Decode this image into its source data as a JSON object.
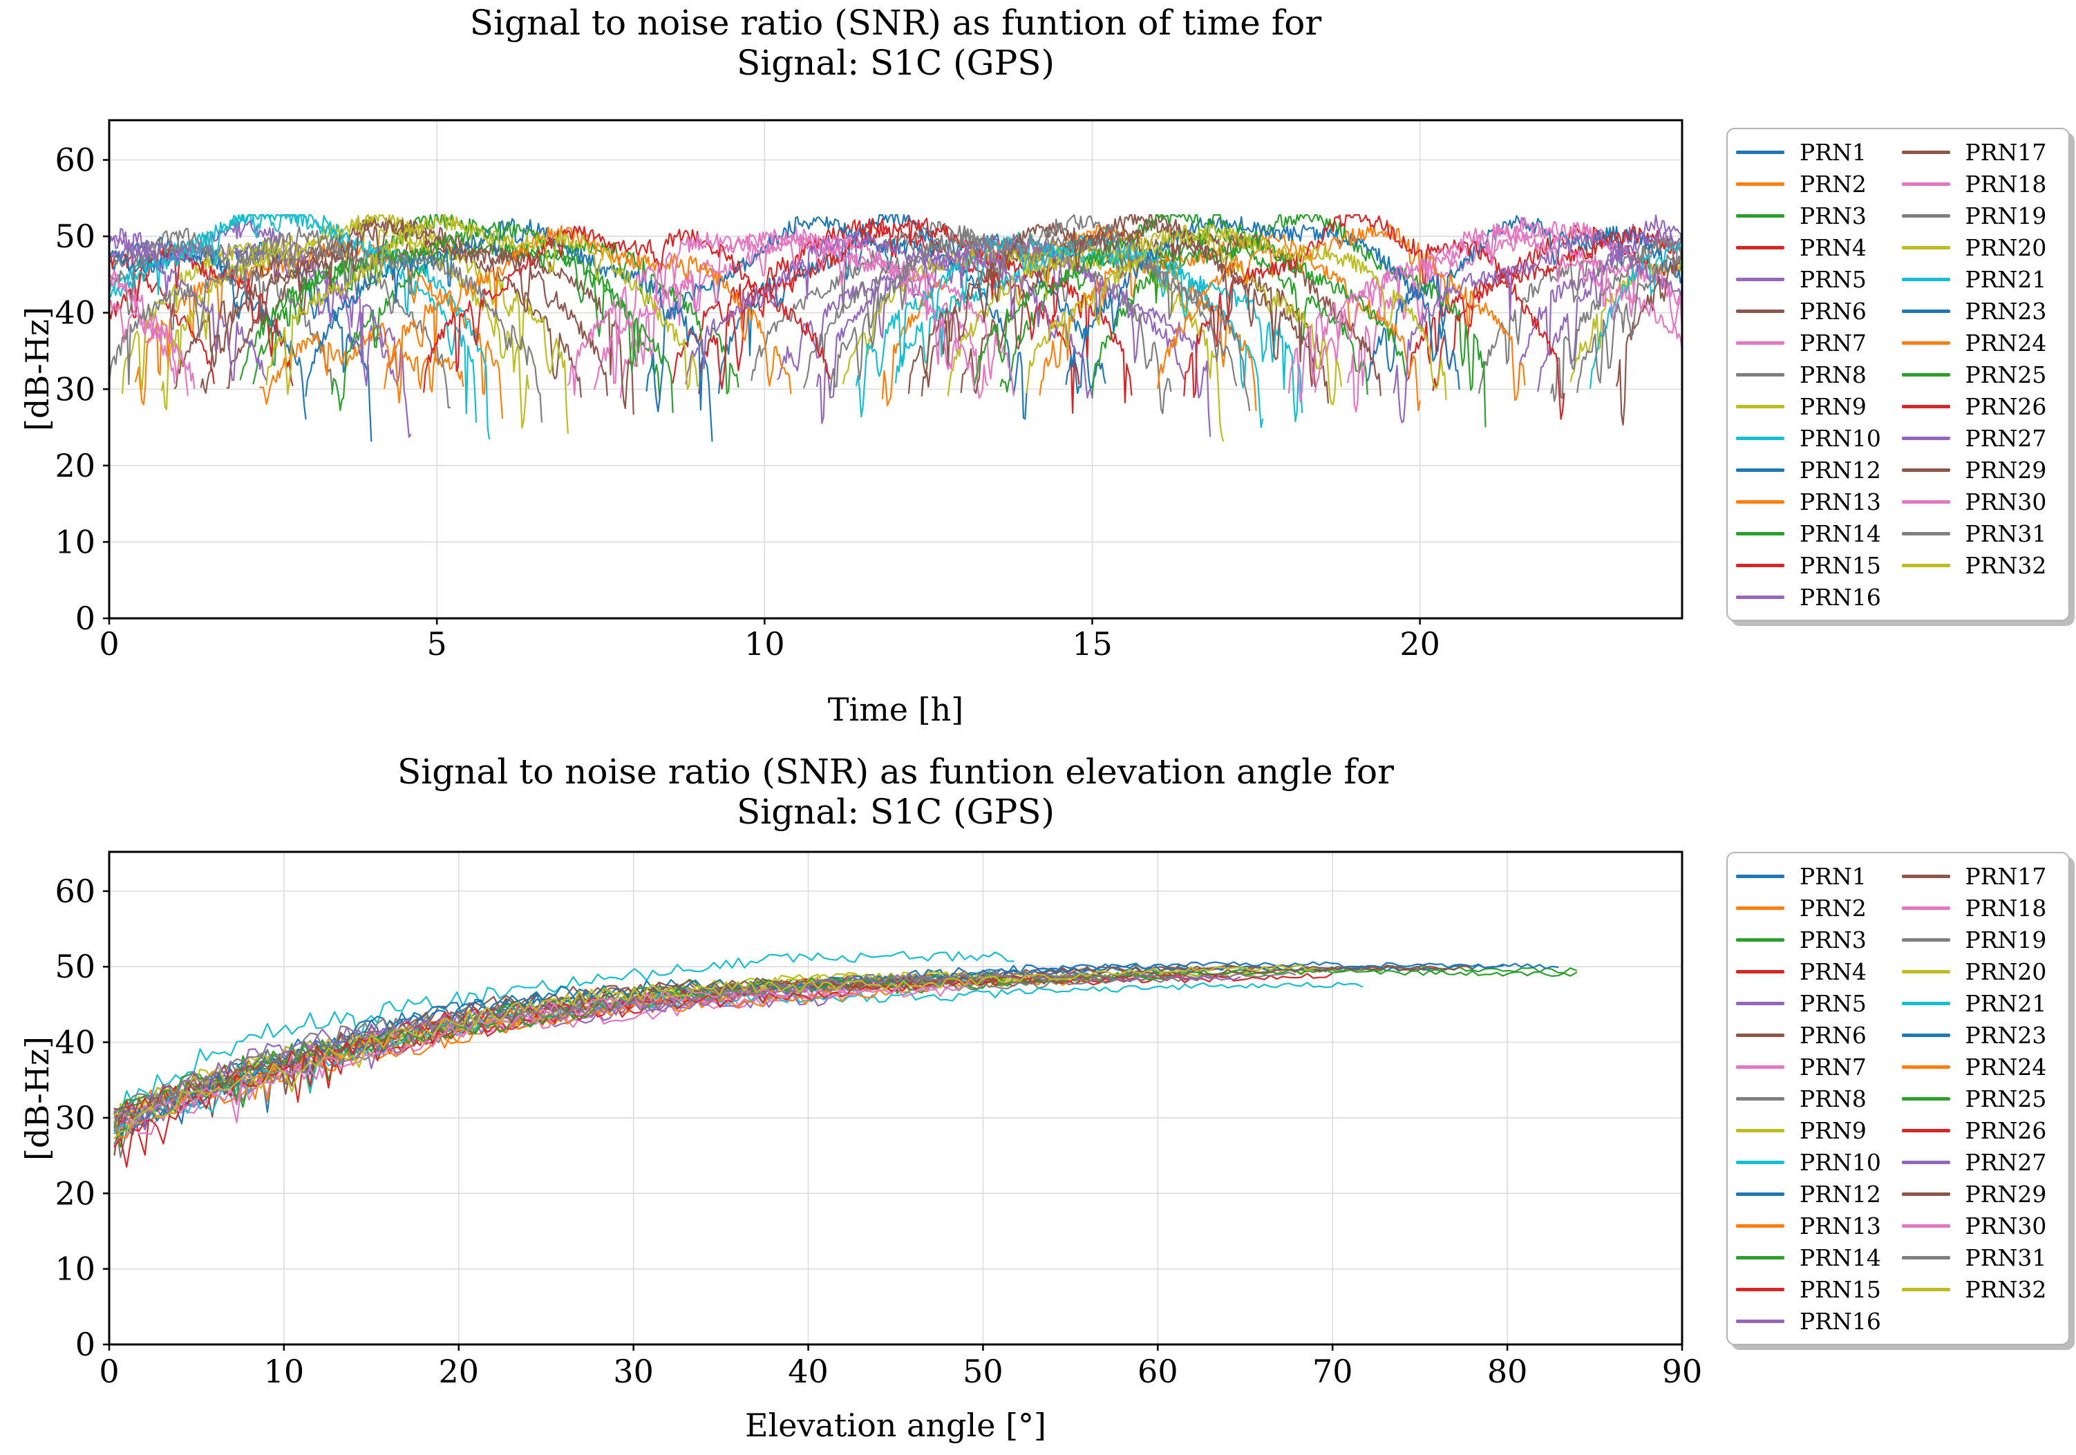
{
  "figure": {
    "background": "#ffffff",
    "text_color": "#000000",
    "grid_color": "#dcdcdc",
    "spine_color": "#000000"
  },
  "chart_data": [
    {
      "type": "line",
      "title": "Signal to noise ratio (SNR) as funtion of time for",
      "subtitle": "Signal: S1C (GPS)",
      "xlabel": "Time [h]",
      "ylabel": "[dB-Hz]",
      "xlim": [
        0,
        24
      ],
      "ylim": [
        0,
        65.2
      ],
      "xticks": [
        0,
        5,
        10,
        15,
        20
      ],
      "yticks": [
        0,
        10,
        20,
        30,
        40,
        50,
        60
      ],
      "grid": true,
      "legend_position": "outside-right",
      "legend_columns": 2,
      "noise": {
        "edge_snr": 30,
        "hf_amplitude": 1.1,
        "wobble_amplitude": 1.5,
        "dip_max_depth": 8,
        "snr_floor": 23.2,
        "snr_ceiling": 52.8,
        "sample_step_hours": 0.025
      },
      "series": [
        {
          "name": "PRN1",
          "color": "#1f77b4",
          "passes": [
            {
              "start": -1.2,
              "end": 4.0,
              "peak": 49
            },
            {
              "start": 9.3,
              "end": 15.2,
              "peak": 51
            }
          ]
        },
        {
          "name": "PRN2",
          "color": "#ff7f0e",
          "passes": [
            {
              "start": 0.4,
              "end": 6.0,
              "peak": 48
            },
            {
              "start": 11.8,
              "end": 17.5,
              "peak": 50
            }
          ]
        },
        {
          "name": "PRN3",
          "color": "#2ca02c",
          "passes": [
            {
              "start": 2.2,
              "end": 8.4,
              "peak": 51
            },
            {
              "start": 13.6,
              "end": 19.2,
              "peak": 49
            }
          ]
        },
        {
          "name": "PRN4",
          "color": "#d62728",
          "passes": [
            {
              "start": -2.5,
              "end": 1.6,
              "peak": 47
            },
            {
              "start": 8.6,
              "end": 14.8,
              "peak": 50
            },
            {
              "start": 19.8,
              "end": 25.5,
              "peak": 49
            }
          ]
        },
        {
          "name": "PRN5",
          "color": "#9467bd",
          "passes": [
            {
              "start": -3.0,
              "end": 4.4,
              "peak": 50
            },
            {
              "start": 10.8,
              "end": 16.4,
              "peak": 48
            },
            {
              "start": 21.5,
              "end": 26.0,
              "peak": 50
            }
          ]
        },
        {
          "name": "PRN6",
          "color": "#8c564b",
          "passes": [
            {
              "start": 1.0,
              "end": 7.2,
              "peak": 49
            },
            {
              "start": 12.4,
              "end": 18.6,
              "peak": 51
            }
          ]
        },
        {
          "name": "PRN7",
          "color": "#e377c2",
          "passes": [
            {
              "start": -3.5,
              "end": 1.3,
              "peak": 46
            },
            {
              "start": 7.8,
              "end": 13.4,
              "peak": 49
            },
            {
              "start": 18.9,
              "end": 24.8,
              "peak": 50
            }
          ]
        },
        {
          "name": "PRN8",
          "color": "#7f7f7f",
          "passes": [
            {
              "start": -1.8,
              "end": 3.4,
              "peak": 49
            },
            {
              "start": 9.8,
              "end": 16.2,
              "peak": 50
            },
            {
              "start": 20.9,
              "end": 26.0,
              "peak": 48
            }
          ]
        },
        {
          "name": "PRN9",
          "color": "#bcbd22",
          "passes": [
            {
              "start": 0.2,
              "end": 6.4,
              "peak": 51
            },
            {
              "start": 11.2,
              "end": 17.0,
              "peak": 49
            },
            {
              "start": 22.3,
              "end": 27.0,
              "peak": 48
            }
          ]
        },
        {
          "name": "PRN10",
          "color": "#17becf",
          "passes": [
            {
              "start": -0.8,
              "end": 5.6,
              "peak": 52
            },
            {
              "start": 12.0,
              "end": 18.2,
              "peak": 48
            }
          ]
        },
        {
          "name": "PRN12",
          "color": "#1f77b4",
          "passes": [
            {
              "start": -2.2,
              "end": 3.0,
              "peak": 48
            },
            {
              "start": 8.2,
              "end": 14.0,
              "peak": 51
            },
            {
              "start": 19.2,
              "end": 25.0,
              "peak": 51
            }
          ]
        },
        {
          "name": "PRN13",
          "color": "#ff7f0e",
          "passes": [
            {
              "start": 2.3,
              "end": 5.4,
              "peak": 36
            },
            {
              "start": 14.2,
              "end": 20.0,
              "peak": 49
            }
          ]
        },
        {
          "name": "PRN14",
          "color": "#2ca02c",
          "passes": [
            {
              "start": 3.4,
              "end": 9.6,
              "peak": 49
            },
            {
              "start": 15.0,
              "end": 21.0,
              "peak": 51
            }
          ]
        },
        {
          "name": "PRN15",
          "color": "#d62728",
          "passes": [
            {
              "start": -0.4,
              "end": 2.8,
              "peak": 47
            },
            {
              "start": 9.0,
              "end": 15.6,
              "peak": 50
            },
            {
              "start": 20.2,
              "end": 25.6,
              "peak": 49
            }
          ]
        },
        {
          "name": "PRN16",
          "color": "#9467bd",
          "passes": [
            {
              "start": -1.5,
              "end": 4.6,
              "peak": 50
            },
            {
              "start": 10.2,
              "end": 16.8,
              "peak": 48
            },
            {
              "start": 21.8,
              "end": 26.4,
              "peak": 49
            }
          ]
        },
        {
          "name": "PRN17",
          "color": "#8c564b",
          "passes": [
            {
              "start": 1.8,
              "end": 8.0,
              "peak": 51
            },
            {
              "start": 13.0,
              "end": 19.4,
              "peak": 50
            }
          ]
        },
        {
          "name": "PRN18",
          "color": "#e377c2",
          "passes": [
            {
              "start": -2.8,
              "end": 1.0,
              "peak": 45
            },
            {
              "start": 7.4,
              "end": 13.8,
              "peak": 49
            },
            {
              "start": 18.4,
              "end": 24.6,
              "peak": 50
            }
          ]
        },
        {
          "name": "PRN19",
          "color": "#7f7f7f",
          "passes": [
            {
              "start": -1.0,
              "end": 5.2,
              "peak": 49
            },
            {
              "start": 10.6,
              "end": 17.2,
              "peak": 50
            },
            {
              "start": 22.0,
              "end": 27.0,
              "peak": 49
            }
          ]
        },
        {
          "name": "PRN20",
          "color": "#bcbd22",
          "passes": [
            {
              "start": 0.8,
              "end": 7.0,
              "peak": 51
            },
            {
              "start": 12.8,
              "end": 18.8,
              "peak": 49
            }
          ]
        },
        {
          "name": "PRN21",
          "color": "#17becf",
          "passes": [
            {
              "start": -0.6,
              "end": 5.8,
              "peak": 52
            },
            {
              "start": 11.4,
              "end": 17.6,
              "peak": 49
            },
            {
              "start": 22.6,
              "end": 27.2,
              "peak": 52
            }
          ]
        },
        {
          "name": "PRN23",
          "color": "#1f77b4",
          "passes": [
            {
              "start": 3.0,
              "end": 9.2,
              "peak": 50
            },
            {
              "start": 14.6,
              "end": 20.6,
              "peak": 52
            }
          ]
        },
        {
          "name": "PRN24",
          "color": "#ff7f0e",
          "passes": [
            {
              "start": 4.2,
              "end": 10.4,
              "peak": 49
            },
            {
              "start": 16.0,
              "end": 21.6,
              "peak": 50
            }
          ]
        },
        {
          "name": "PRN25",
          "color": "#2ca02c",
          "passes": [
            {
              "start": 2.0,
              "end": 8.6,
              "peak": 50
            },
            {
              "start": 13.2,
              "end": 19.8,
              "peak": 51
            }
          ]
        },
        {
          "name": "PRN26",
          "color": "#d62728",
          "passes": [
            {
              "start": 4.8,
              "end": 11.0,
              "peak": 50
            },
            {
              "start": 16.4,
              "end": 22.2,
              "peak": 51
            }
          ]
        },
        {
          "name": "PRN27",
          "color": "#9467bd",
          "passes": [
            {
              "start": -3.2,
              "end": 2.4,
              "peak": 48
            },
            {
              "start": 8.8,
              "end": 15.0,
              "peak": 49
            },
            {
              "start": 19.6,
              "end": 25.2,
              "peak": 48
            }
          ]
        },
        {
          "name": "PRN29",
          "color": "#8c564b",
          "passes": [
            {
              "start": 1.4,
              "end": 7.6,
              "peak": 50
            },
            {
              "start": 12.2,
              "end": 18.4,
              "peak": 51
            },
            {
              "start": 23.0,
              "end": 27.0,
              "peak": 49
            }
          ]
        },
        {
          "name": "PRN30",
          "color": "#e377c2",
          "passes": [
            {
              "start": -2.0,
              "end": 1.2,
              "peak": 44
            },
            {
              "start": 7.0,
              "end": 13.2,
              "peak": 50
            },
            {
              "start": 18.0,
              "end": 24.2,
              "peak": 49
            }
          ]
        },
        {
          "name": "PRN31",
          "color": "#7f7f7f",
          "passes": [
            {
              "start": 0.0,
              "end": 6.6,
              "peak": 49
            },
            {
              "start": 11.0,
              "end": 17.4,
              "peak": 51
            },
            {
              "start": 22.4,
              "end": 27.0,
              "peak": 48
            }
          ]
        },
        {
          "name": "PRN32",
          "color": "#bcbd22",
          "passes": [
            {
              "start": 2.4,
              "end": 9.0,
              "peak": 51
            },
            {
              "start": 14.0,
              "end": 20.4,
              "peak": 50
            }
          ]
        }
      ]
    },
    {
      "type": "line",
      "title": "Signal to noise ratio (SNR) as funtion elevation angle for",
      "subtitle": "Signal: S1C (GPS)",
      "xlabel": "Elevation angle [°]",
      "ylabel": "[dB-Hz]",
      "xlim": [
        0,
        90
      ],
      "ylim": [
        0,
        65.2
      ],
      "xticks": [
        0,
        10,
        20,
        30,
        40,
        50,
        60,
        70,
        80,
        90
      ],
      "yticks": [
        0,
        10,
        20,
        30,
        40,
        50,
        60
      ],
      "grid": true,
      "legend_position": "outside-right",
      "legend_columns": 2,
      "noise": {
        "low_elevation_scatter": 1.6,
        "high_elevation_scatter": 0.35,
        "dip_depth": 5,
        "snr_floor": 23.5,
        "snr_ceiling": 53,
        "sample_step_degrees": 0.35
      },
      "series": [
        {
          "name": "PRN1",
          "color": "#1f77b4",
          "max_elevation": 62,
          "snr_at_zero": 29.0,
          "snr_plateau": 50.0,
          "rise_tau": 18
        },
        {
          "name": "PRN2",
          "color": "#ff7f0e",
          "max_elevation": 55,
          "snr_at_zero": 28.5,
          "snr_plateau": 49.5,
          "rise_tau": 19
        },
        {
          "name": "PRN3",
          "color": "#2ca02c",
          "max_elevation": 84,
          "snr_at_zero": 29.5,
          "snr_plateau": 49.8,
          "rise_tau": 18
        },
        {
          "name": "PRN4",
          "color": "#d62728",
          "max_elevation": 70,
          "snr_at_zero": 28.0,
          "snr_plateau": 49.6,
          "rise_tau": 20
        },
        {
          "name": "PRN5",
          "color": "#9467bd",
          "max_elevation": 48,
          "snr_at_zero": 29.0,
          "snr_plateau": 49.2,
          "rise_tau": 19
        },
        {
          "name": "PRN6",
          "color": "#8c564b",
          "max_elevation": 66,
          "snr_at_zero": 29.5,
          "snr_plateau": 50.2,
          "rise_tau": 18
        },
        {
          "name": "PRN7",
          "color": "#e377c2",
          "max_elevation": 44,
          "snr_at_zero": 28.5,
          "snr_plateau": 49.0,
          "rise_tau": 20
        },
        {
          "name": "PRN8",
          "color": "#7f7f7f",
          "max_elevation": 58,
          "snr_at_zero": 29.0,
          "snr_plateau": 49.8,
          "rise_tau": 19
        },
        {
          "name": "PRN9",
          "color": "#bcbd22",
          "max_elevation": 73,
          "snr_at_zero": 28.5,
          "snr_plateau": 50.0,
          "rise_tau": 18
        },
        {
          "name": "PRN10",
          "color": "#17becf",
          "max_elevation": 52,
          "snr_at_zero": 29.5,
          "snr_plateau": 51.8,
          "rise_tau": 14
        },
        {
          "name": "PRN12",
          "color": "#1f77b4",
          "max_elevation": 80,
          "snr_at_zero": 29.0,
          "snr_plateau": 50.4,
          "rise_tau": 18
        },
        {
          "name": "PRN13",
          "color": "#ff7f0e",
          "max_elevation": 47,
          "snr_at_zero": 28.0,
          "snr_plateau": 49.4,
          "rise_tau": 20
        },
        {
          "name": "PRN14",
          "color": "#2ca02c",
          "max_elevation": 84,
          "snr_at_zero": 29.0,
          "snr_plateau": 49.6,
          "rise_tau": 19
        },
        {
          "name": "PRN15",
          "color": "#d62728",
          "max_elevation": 64,
          "snr_at_zero": 28.5,
          "snr_plateau": 49.8,
          "rise_tau": 19
        },
        {
          "name": "PRN16",
          "color": "#9467bd",
          "max_elevation": 42,
          "snr_at_zero": 29.0,
          "snr_plateau": 48.8,
          "rise_tau": 20
        },
        {
          "name": "PRN17",
          "color": "#8c564b",
          "max_elevation": 76,
          "snr_at_zero": 29.5,
          "snr_plateau": 50.2,
          "rise_tau": 18
        },
        {
          "name": "PRN18",
          "color": "#e377c2",
          "max_elevation": 50,
          "snr_at_zero": 28.0,
          "snr_plateau": 49.6,
          "rise_tau": 19
        },
        {
          "name": "PRN19",
          "color": "#7f7f7f",
          "max_elevation": 68,
          "snr_at_zero": 29.0,
          "snr_plateau": 49.4,
          "rise_tau": 19
        },
        {
          "name": "PRN20",
          "color": "#bcbd22",
          "max_elevation": 57,
          "snr_at_zero": 28.5,
          "snr_plateau": 50.0,
          "rise_tau": 18
        },
        {
          "name": "PRN21",
          "color": "#17becf",
          "max_elevation": 72,
          "snr_at_zero": 28.0,
          "snr_plateau": 47.6,
          "rise_tau": 16
        },
        {
          "name": "PRN23",
          "color": "#1f77b4",
          "max_elevation": 83,
          "snr_at_zero": 29.0,
          "snr_plateau": 50.6,
          "rise_tau": 18
        },
        {
          "name": "PRN24",
          "color": "#ff7f0e",
          "max_elevation": 46,
          "snr_at_zero": 28.5,
          "snr_plateau": 49.2,
          "rise_tau": 20
        },
        {
          "name": "PRN25",
          "color": "#2ca02c",
          "max_elevation": 61,
          "snr_at_zero": 29.0,
          "snr_plateau": 49.8,
          "rise_tau": 19
        },
        {
          "name": "PRN26",
          "color": "#d62728",
          "max_elevation": 54,
          "snr_at_zero": 28.0,
          "snr_plateau": 49.6,
          "rise_tau": 19
        },
        {
          "name": "PRN27",
          "color": "#9467bd",
          "max_elevation": 65,
          "snr_at_zero": 29.5,
          "snr_plateau": 49.4,
          "rise_tau": 18
        },
        {
          "name": "PRN29",
          "color": "#8c564b",
          "max_elevation": 78,
          "snr_at_zero": 29.0,
          "snr_plateau": 50.0,
          "rise_tau": 19
        },
        {
          "name": "PRN30",
          "color": "#e377c2",
          "max_elevation": 49,
          "snr_at_zero": 28.5,
          "snr_plateau": 49.2,
          "rise_tau": 20
        },
        {
          "name": "PRN31",
          "color": "#7f7f7f",
          "max_elevation": 59,
          "snr_at_zero": 29.0,
          "snr_plateau": 49.8,
          "rise_tau": 18
        },
        {
          "name": "PRN32",
          "color": "#bcbd22",
          "max_elevation": 69,
          "snr_at_zero": 28.5,
          "snr_plateau": 50.2,
          "rise_tau": 19
        }
      ]
    }
  ]
}
